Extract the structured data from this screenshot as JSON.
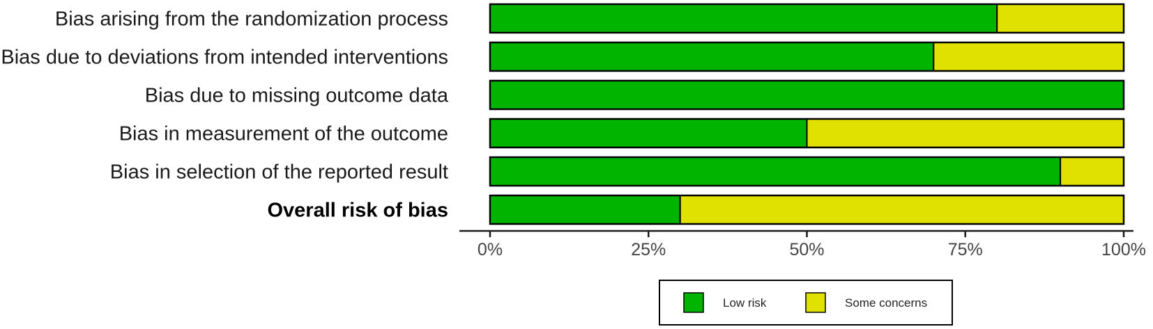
{
  "chart_data": {
    "type": "bar",
    "orientation": "horizontal",
    "stacked": true,
    "categories": [
      "Bias arising from the randomization process",
      "Bias due to deviations from intended interventions",
      "Bias due to missing outcome data",
      "Bias in measurement of the outcome",
      "Bias in selection of the reported result",
      "Overall risk of bias"
    ],
    "bold_categories": [
      "Overall risk of bias"
    ],
    "series": [
      {
        "name": "Low risk",
        "color": "#00b400",
        "values": [
          80,
          70,
          100,
          50,
          90,
          30
        ]
      },
      {
        "name": "Some concerns",
        "color": "#e1e100",
        "values": [
          20,
          30,
          0,
          50,
          10,
          70
        ]
      }
    ],
    "xlim": [
      0,
      100
    ],
    "xticks": [
      0,
      25,
      50,
      75,
      100
    ],
    "xtick_labels": [
      "0%",
      "25%",
      "50%",
      "75%",
      "100%"
    ],
    "title": "",
    "xlabel": "",
    "ylabel": "",
    "grid": false,
    "legend_position": "bottom"
  }
}
